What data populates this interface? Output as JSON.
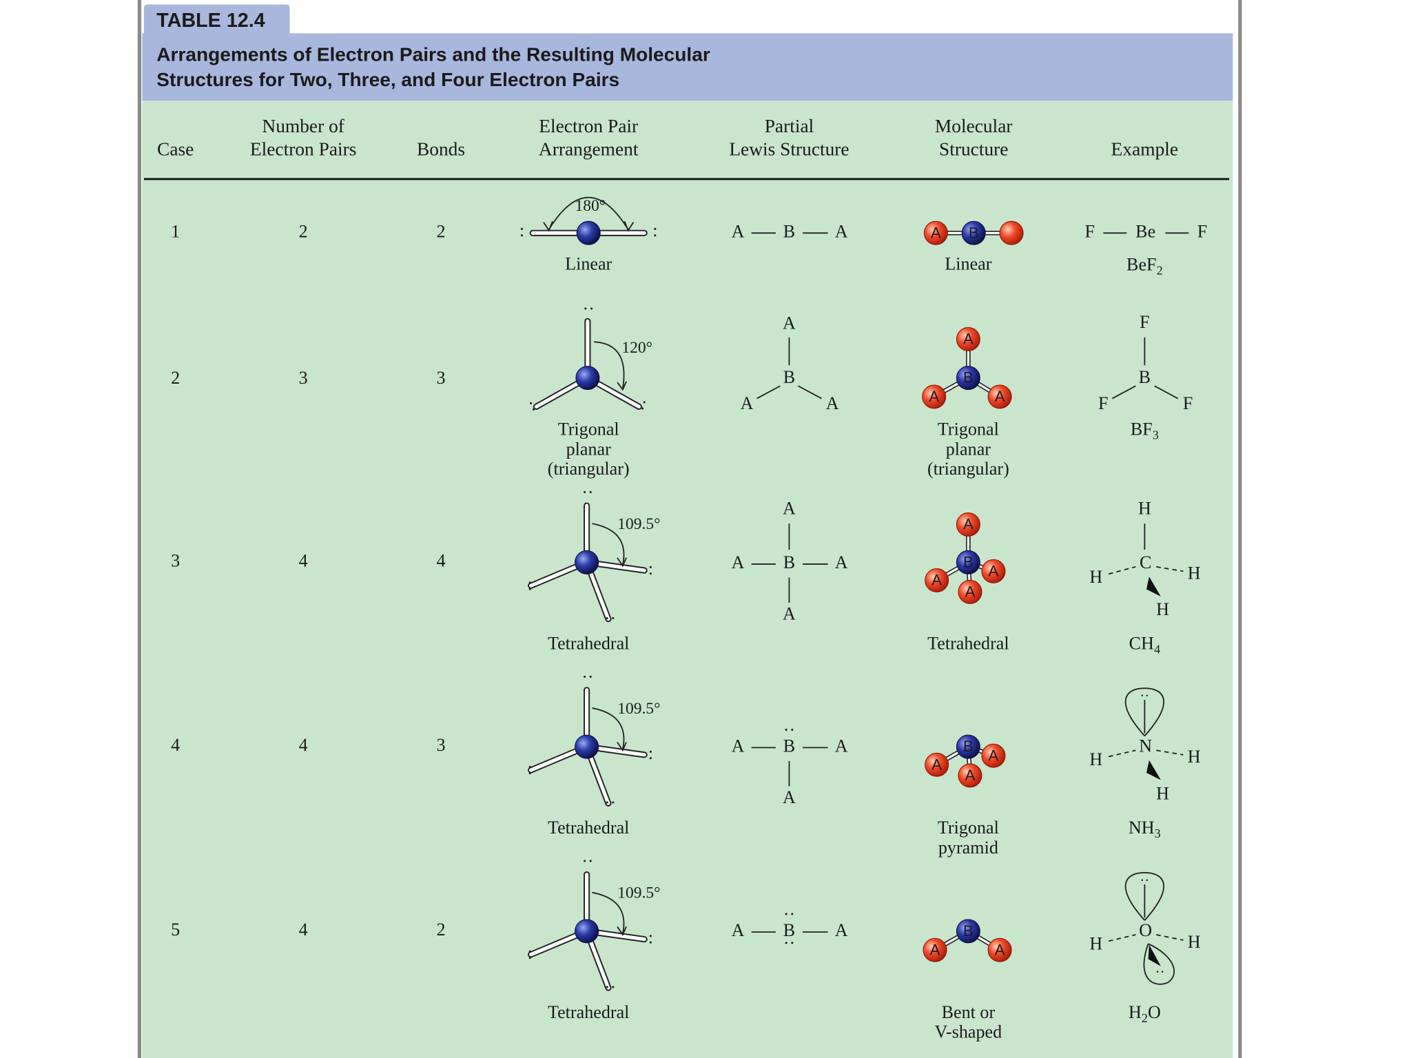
{
  "table": {
    "tag": "TABLE 12.4",
    "title": [
      "Arrangements of Electron Pairs and the Resulting Molecular",
      "Structures for Two, Three, and Four Electron Pairs"
    ],
    "headers": [
      [
        "Case"
      ],
      [
        "Number of",
        "Electron Pairs"
      ],
      [
        "Bonds"
      ],
      [
        "Electron Pair",
        "Arrangement"
      ],
      [
        "Partial",
        "Lewis Structure"
      ],
      [
        "Molecular",
        "Structure"
      ],
      [
        "Example"
      ]
    ],
    "rows": [
      {
        "case": 1,
        "pairs": 2,
        "bonds": 2,
        "angle": "180°",
        "arrangement": [
          "Linear"
        ],
        "lewis": [
          "A",
          "B",
          "A"
        ],
        "balls": [
          "A",
          "B"
        ],
        "structure": [
          "Linear"
        ],
        "example": [
          "F",
          "Be",
          "F"
        ],
        "formula": [
          "BeF",
          "2"
        ]
      },
      {
        "case": 2,
        "pairs": 3,
        "bonds": 3,
        "angle": "120°",
        "arrangement": [
          "Trigonal",
          "planar",
          "(triangular)"
        ],
        "lewis": [
          "A",
          "B",
          "A",
          "A"
        ],
        "balls": [
          "A",
          "B",
          "A",
          "A"
        ],
        "structure": [
          "Trigonal",
          "planar",
          "(triangular)"
        ],
        "example": [
          "F",
          "B",
          "F",
          "F"
        ],
        "formula": [
          "BF",
          "3"
        ]
      },
      {
        "case": 3,
        "pairs": 4,
        "bonds": 4,
        "angle": "109.5°",
        "arrangement": [
          "Tetrahedral"
        ],
        "lewis": [
          "A",
          "A",
          "B",
          "A",
          "A"
        ],
        "balls": [
          "A",
          "B",
          "A",
          "A",
          "A"
        ],
        "structure": [
          "Tetrahedral"
        ],
        "example": [
          "H",
          "H",
          "C",
          "H",
          "H"
        ],
        "formula": [
          "CH",
          "4"
        ]
      },
      {
        "case": 4,
        "pairs": 4,
        "bonds": 3,
        "angle": "109.5°",
        "arrangement": [
          "Tetrahedral"
        ],
        "lewis": [
          "A",
          "B",
          "A",
          "A"
        ],
        "balls": [
          "B",
          "A",
          "A",
          "A"
        ],
        "structure": [
          "Trigonal",
          "pyramid"
        ],
        "example": [
          "H",
          "N",
          "H",
          "H"
        ],
        "formula": [
          "NH",
          "3"
        ]
      },
      {
        "case": 5,
        "pairs": 4,
        "bonds": 2,
        "angle": "109.5°",
        "arrangement": [
          "Tetrahedral"
        ],
        "lewis": [
          "A",
          "B",
          "A"
        ],
        "balls": [
          "B",
          "A",
          "A"
        ],
        "structure": [
          "Bent or",
          "V-shaped"
        ],
        "example": [
          "H",
          "O",
          "H"
        ],
        "formula": [
          "H",
          "2",
          "O"
        ]
      }
    ]
  }
}
